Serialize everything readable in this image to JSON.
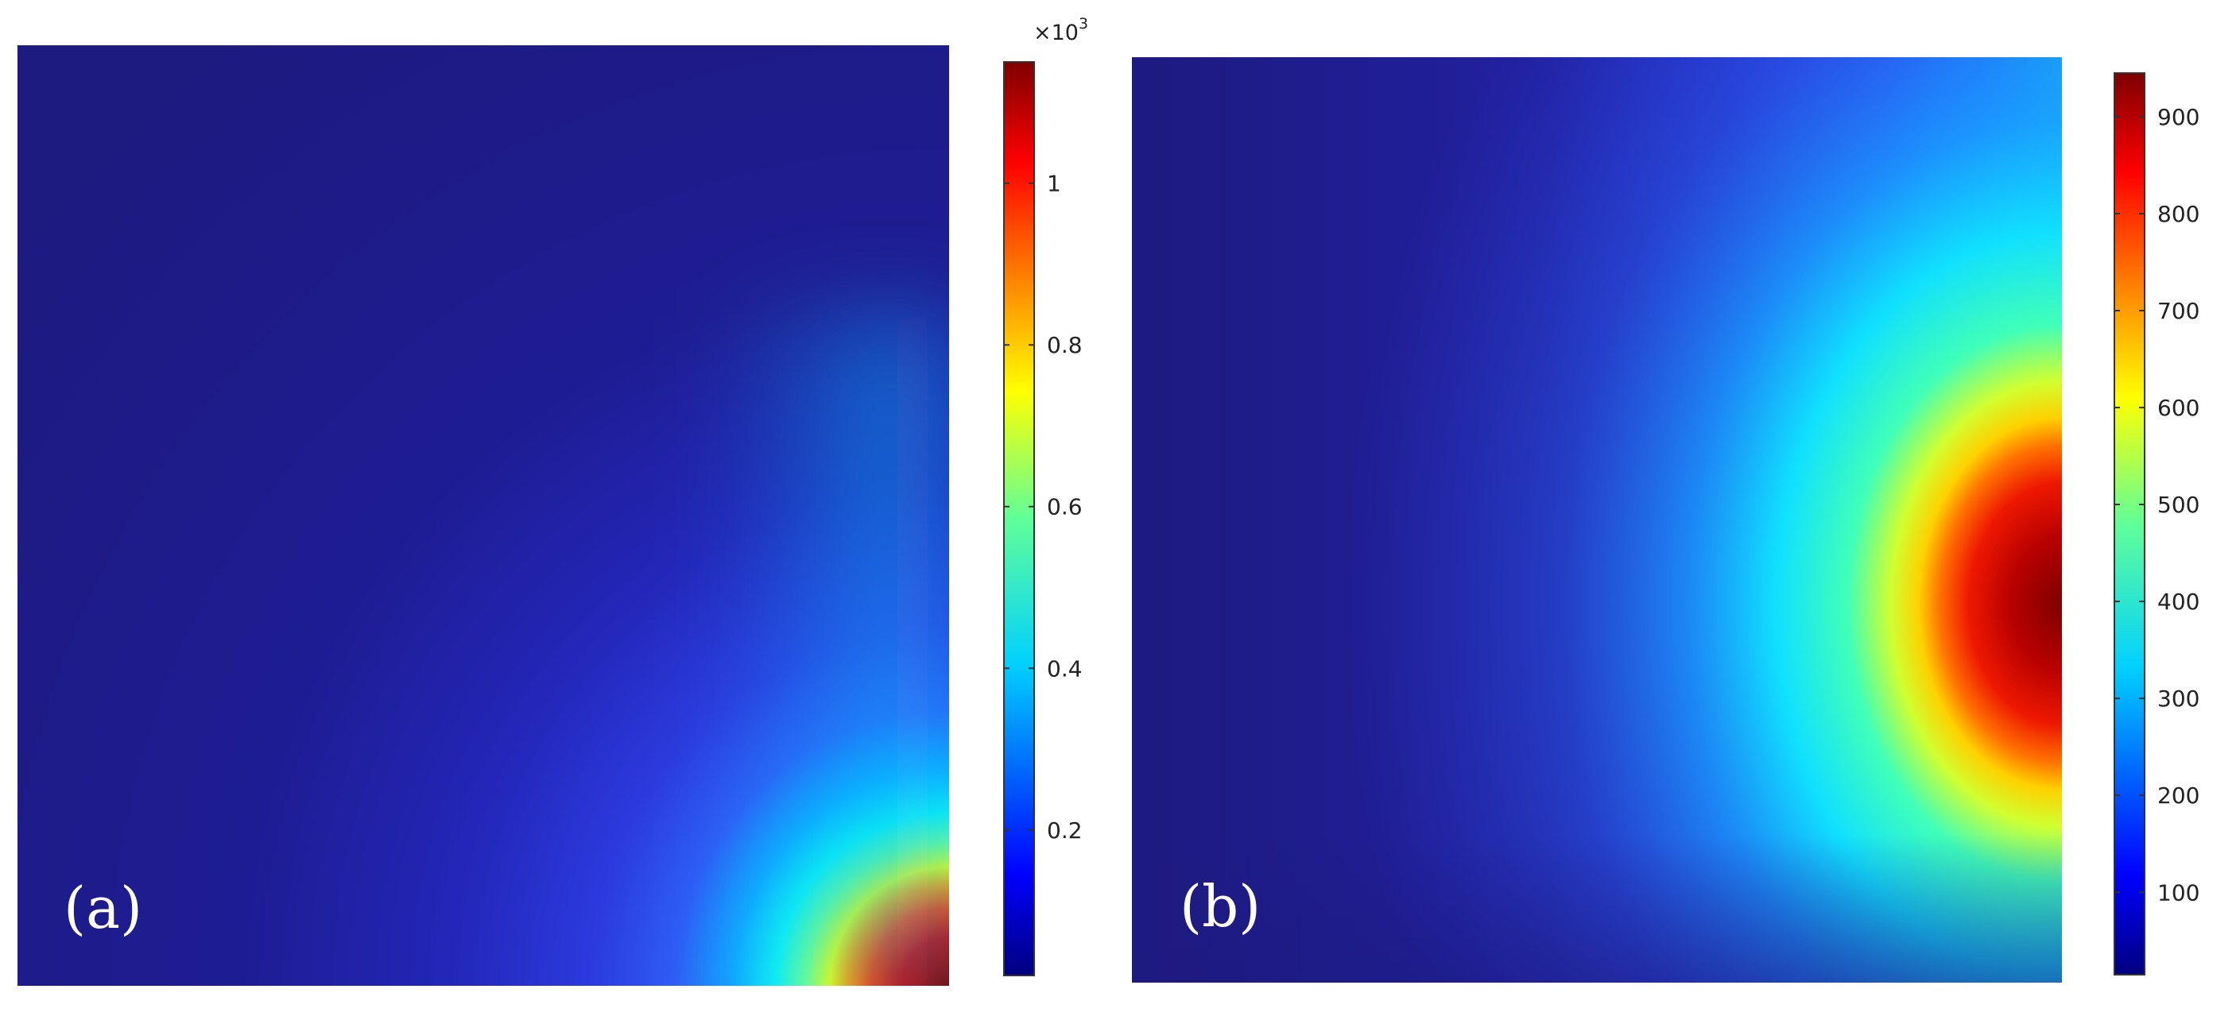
{
  "chart_data": [
    {
      "type": "heatmap",
      "panel_label": "(a)",
      "colormap": "jet",
      "colorbar": {
        "multiplier": "×10",
        "multiplier_exponent": "3",
        "range": [
          0.02,
          1.15
        ],
        "ticks": [
          0.2,
          0.4,
          0.6,
          0.8,
          1
        ],
        "tick_labels": [
          "0.2",
          "0.4",
          "0.6",
          "0.8",
          "1"
        ]
      },
      "hotspot": {
        "location": "bottom-right corner",
        "value": 1.15
      }
    },
    {
      "type": "heatmap",
      "panel_label": "(b)",
      "colormap": "jet",
      "colorbar": {
        "multiplier": "",
        "range": [
          15,
          945
        ],
        "ticks": [
          100,
          200,
          300,
          400,
          500,
          600,
          700,
          800,
          900
        ],
        "tick_labels": [
          "100",
          "200",
          "300",
          "400",
          "500",
          "600",
          "700",
          "800",
          "900"
        ]
      },
      "hotspot": {
        "location": "right edge, middle",
        "value": 945
      }
    }
  ],
  "colors": {
    "jet": [
      "#00007f",
      "#0000ff",
      "#007fff",
      "#00ffff",
      "#7fff7f",
      "#ffff00",
      "#ff7f00",
      "#ff0000",
      "#7f0000"
    ],
    "background_dark": "#1d1a80"
  }
}
